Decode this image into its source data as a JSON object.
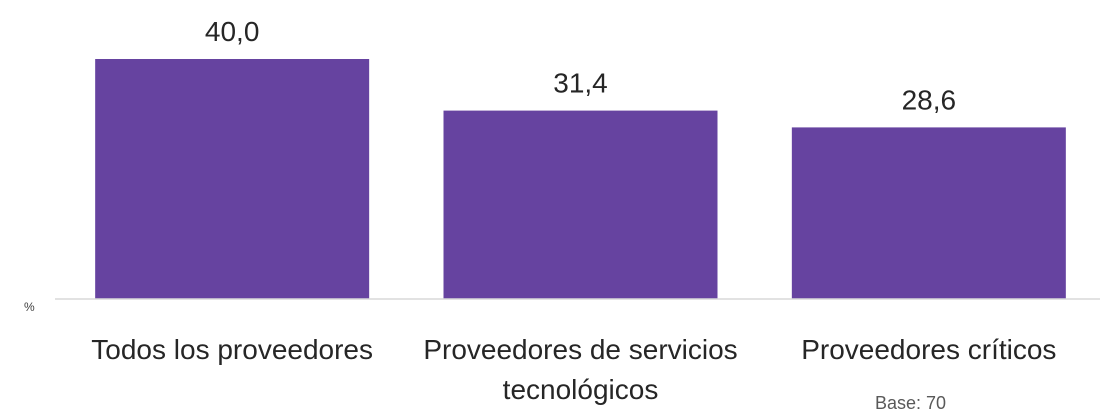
{
  "chart_data": {
    "type": "bar",
    "categories": [
      "Todos los proveedores",
      "Proveedores de servicios tecnológicos",
      "Proveedores críticos"
    ],
    "values": [
      40.0,
      31.4,
      28.6
    ],
    "value_labels": [
      "40,0",
      "31,4",
      "28,6"
    ],
    "color": "#6643a0",
    "unit": "%",
    "note": "Base: 70"
  }
}
